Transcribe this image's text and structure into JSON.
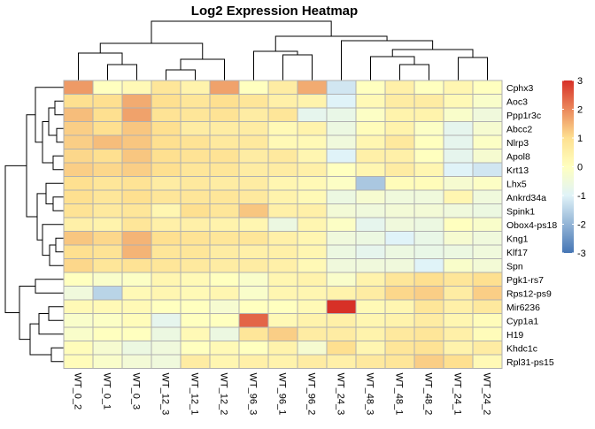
{
  "chart_data": {
    "type": "heatmap",
    "title": "Log2 Expression Heatmap",
    "columns": [
      "WT_0_2",
      "WT_0_1",
      "WT_0_3",
      "WT_12_3",
      "WT_12_1",
      "WT_12_2",
      "WT_96_3",
      "WT_96_1",
      "WT_96_2",
      "WT_24_3",
      "WT_48_3",
      "WT_48_1",
      "WT_48_2",
      "WT_24_1",
      "WT_24_2"
    ],
    "rows": [
      "Cphx3",
      "Aoc3",
      "Ppp1r3c",
      "Abcc2",
      "Nlrp3",
      "Apol8",
      "Krt13",
      "Lhx5",
      "Ankrd34a",
      "Spink1",
      "Obox4-ps18",
      "Kng1",
      "Klf17",
      "Spn",
      "Pgk1-rs7",
      "Rps12-ps9",
      "Mir6236",
      "Cyp1a1",
      "H19",
      "Khdc1c",
      "Rpl31-ps15"
    ],
    "values": [
      [
        1.8,
        0.0,
        0.2,
        0.8,
        0.4,
        1.7,
        0.0,
        0.6,
        1.6,
        -1.2,
        0.0,
        0.5,
        0.0,
        0.3,
        0.0
      ],
      [
        1.0,
        1.0,
        1.6,
        1.0,
        0.8,
        1.0,
        0.8,
        0.5,
        0.4,
        -1.0,
        0.2,
        0.6,
        0.6,
        0.2,
        -0.2
      ],
      [
        1.4,
        1.0,
        1.7,
        0.9,
        0.8,
        0.9,
        0.6,
        0.8,
        -0.8,
        -0.7,
        -0.1,
        0.4,
        0.4,
        -0.2,
        -0.5
      ],
      [
        1.2,
        1.0,
        1.3,
        1.0,
        0.6,
        0.6,
        0.6,
        0.2,
        0.4,
        -0.6,
        0.1,
        0.4,
        -0.1,
        -0.8,
        -0.3
      ],
      [
        1.2,
        1.4,
        1.3,
        1.0,
        0.9,
        0.7,
        0.7,
        0.2,
        0.2,
        -0.5,
        0.3,
        0.7,
        0.0,
        -0.8,
        -0.1
      ],
      [
        1.1,
        1.0,
        1.3,
        1.0,
        0.9,
        0.9,
        0.6,
        0.7,
        0.3,
        -1.0,
        0.5,
        0.5,
        0.0,
        -0.8,
        -0.3
      ],
      [
        1.2,
        1.1,
        1.2,
        1.0,
        0.8,
        0.8,
        0.6,
        0.6,
        0.5,
        0.0,
        0.3,
        0.6,
        0.3,
        -1.0,
        -1.2
      ],
      [
        1.0,
        0.8,
        0.9,
        0.6,
        0.7,
        0.6,
        0.6,
        0.3,
        0.2,
        -0.1,
        -1.7,
        0.1,
        0.1,
        -0.3,
        -0.1
      ],
      [
        1.0,
        0.8,
        1.0,
        0.8,
        0.8,
        0.8,
        0.7,
        0.4,
        0.2,
        -0.6,
        -0.3,
        -0.5,
        -0.5,
        0.3,
        -0.5
      ],
      [
        0.9,
        0.7,
        0.8,
        0.3,
        1.0,
        0.8,
        1.3,
        0.5,
        0.5,
        -0.4,
        -0.5,
        -0.4,
        -0.4,
        -0.5,
        -0.6
      ],
      [
        0.5,
        0.4,
        0.8,
        0.5,
        0.5,
        0.4,
        0.3,
        -0.6,
        0.3,
        -0.1,
        -0.8,
        -0.5,
        -0.6,
        0.0,
        -0.2
      ],
      [
        1.3,
        1.1,
        1.5,
        1.0,
        0.9,
        0.8,
        0.8,
        0.5,
        0.3,
        -0.5,
        -0.6,
        -1.0,
        -0.7,
        -0.3,
        -0.5
      ],
      [
        1.0,
        0.9,
        1.5,
        0.8,
        0.8,
        0.6,
        0.5,
        0.5,
        0.3,
        -0.6,
        -0.8,
        -0.6,
        -0.7,
        -0.6,
        -0.5
      ],
      [
        1.1,
        0.8,
        0.9,
        0.8,
        0.7,
        0.6,
        0.6,
        0.5,
        0.2,
        -0.5,
        -0.5,
        -0.5,
        -1.0,
        -0.2,
        -0.4
      ],
      [
        0.0,
        -0.2,
        -0.1,
        0.3,
        0.2,
        0.0,
        -0.2,
        0.3,
        0.4,
        -0.2,
        0.4,
        0.8,
        1.0,
        0.8,
        1.0
      ],
      [
        -0.5,
        -1.5,
        0.2,
        0.3,
        0.2,
        0.3,
        -0.2,
        0.3,
        0.3,
        0.4,
        0.6,
        1.1,
        1.2,
        0.6,
        1.2
      ],
      [
        0.2,
        0.2,
        0.2,
        0.0,
        0.0,
        -0.3,
        0.0,
        0.0,
        0.2,
        3.0,
        0.2,
        0.3,
        0.8,
        0.5,
        0.7
      ],
      [
        -0.2,
        -0.1,
        0.1,
        -0.8,
        0.0,
        0.0,
        2.4,
        0.2,
        0.4,
        0.5,
        0.3,
        0.4,
        0.6,
        0.3,
        0.1
      ],
      [
        -0.2,
        0.0,
        0.0,
        -0.6,
        0.2,
        -0.6,
        0.8,
        1.2,
        0.6,
        0.6,
        0.4,
        0.7,
        0.8,
        0.5,
        0.1
      ],
      [
        0.1,
        -0.3,
        -0.6,
        -0.5,
        0.0,
        0.2,
        0.0,
        0.4,
        -0.3,
        1.0,
        0.3,
        0.8,
        0.9,
        0.4,
        0.6
      ],
      [
        0.1,
        -0.2,
        -0.4,
        -0.5,
        0.6,
        0.3,
        0.5,
        0.4,
        0.6,
        0.5,
        0.7,
        0.8,
        1.2,
        1.0,
        0.2
      ]
    ],
    "color_scale": {
      "min": -3,
      "max": 3,
      "colors": [
        "#4575b4",
        "#e0f3f8",
        "#ffffbf",
        "#fee090",
        "#d73027"
      ],
      "stops": [
        -3,
        -1,
        0,
        1,
        3
      ],
      "ticks": [
        -3,
        -2,
        -1,
        0,
        1,
        2,
        3
      ]
    },
    "cell_border_color": "#b0b0b0",
    "legend_placement": "right",
    "column_dendrogram": true,
    "row_dendrogram": true
  }
}
